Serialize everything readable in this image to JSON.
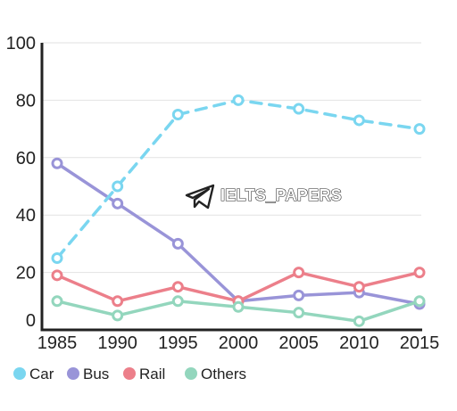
{
  "chart_data": {
    "type": "line",
    "x": [
      "1985",
      "1990",
      "1995",
      "2000",
      "2005",
      "2010",
      "2015"
    ],
    "y_ticks": [
      "0",
      "20",
      "40",
      "60",
      "80",
      "100"
    ],
    "ylim": [
      0,
      100
    ],
    "grid": true,
    "legend_position": "bottom-left",
    "series": [
      {
        "name": "Car",
        "values": [
          25,
          50,
          75,
          80,
          77,
          73,
          70
        ],
        "color": "#7ad6f0",
        "dashed": true
      },
      {
        "name": "Bus",
        "values": [
          58,
          44,
          30,
          10,
          12,
          13,
          9
        ],
        "color": "#9994d8",
        "dashed": false
      },
      {
        "name": "Rail",
        "values": [
          19,
          10,
          15,
          10,
          20,
          15,
          20
        ],
        "color": "#ec7f8a",
        "dashed": false
      },
      {
        "name": "Others",
        "values": [
          10,
          5,
          10,
          8,
          6,
          3,
          10
        ],
        "color": "#93d6bd",
        "dashed": false
      }
    ]
  },
  "watermark": {
    "text": "IELTS_PAPERS",
    "icon": "paper-plane-icon"
  }
}
